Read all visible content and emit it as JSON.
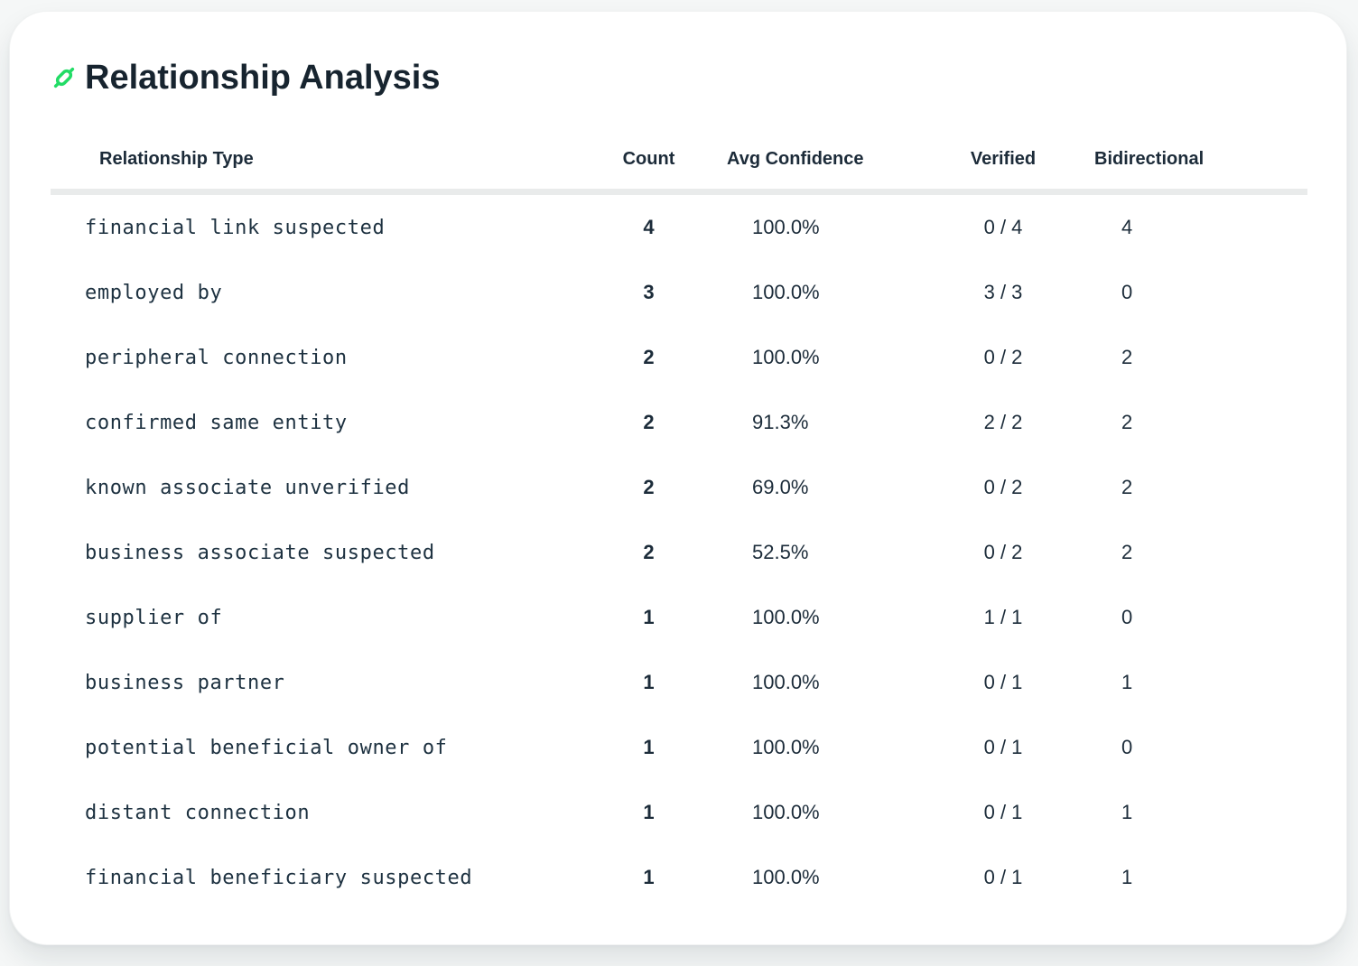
{
  "page": {
    "background_color": "#f5f7f7",
    "card_color": "#ffffff"
  },
  "header": {
    "title": "Relationship Analysis",
    "icon": "link-icon",
    "accent_color": "#22dc66",
    "title_color": "#17242f"
  },
  "table": {
    "columns": [
      {
        "key": "type",
        "label": "Relationship Type"
      },
      {
        "key": "count",
        "label": "Count"
      },
      {
        "key": "avg_confidence",
        "label": "Avg Confidence"
      },
      {
        "key": "verified",
        "label": "Verified"
      },
      {
        "key": "bidirectional",
        "label": "Bidirectional"
      }
    ],
    "rows": [
      {
        "type": "financial link suspected",
        "count": "4",
        "avg_confidence": "100.0%",
        "verified": "0 / 4",
        "bidirectional": "4"
      },
      {
        "type": "employed by",
        "count": "3",
        "avg_confidence": "100.0%",
        "verified": "3 / 3",
        "bidirectional": "0"
      },
      {
        "type": "peripheral connection",
        "count": "2",
        "avg_confidence": "100.0%",
        "verified": "0 / 2",
        "bidirectional": "2"
      },
      {
        "type": "confirmed same entity",
        "count": "2",
        "avg_confidence": "91.3%",
        "verified": "2 / 2",
        "bidirectional": "2"
      },
      {
        "type": "known associate unverified",
        "count": "2",
        "avg_confidence": "69.0%",
        "verified": "0 / 2",
        "bidirectional": "2"
      },
      {
        "type": "business associate suspected",
        "count": "2",
        "avg_confidence": "52.5%",
        "verified": "0 / 2",
        "bidirectional": "2"
      },
      {
        "type": "supplier of",
        "count": "1",
        "avg_confidence": "100.0%",
        "verified": "1 / 1",
        "bidirectional": "0"
      },
      {
        "type": "business partner",
        "count": "1",
        "avg_confidence": "100.0%",
        "verified": "0 / 1",
        "bidirectional": "1"
      },
      {
        "type": "potential beneficial owner of",
        "count": "1",
        "avg_confidence": "100.0%",
        "verified": "0 / 1",
        "bidirectional": "0"
      },
      {
        "type": "distant connection",
        "count": "1",
        "avg_confidence": "100.0%",
        "verified": "0 / 1",
        "bidirectional": "1"
      },
      {
        "type": "financial beneficiary suspected",
        "count": "1",
        "avg_confidence": "100.0%",
        "verified": "0 / 1",
        "bidirectional": "1"
      }
    ]
  }
}
